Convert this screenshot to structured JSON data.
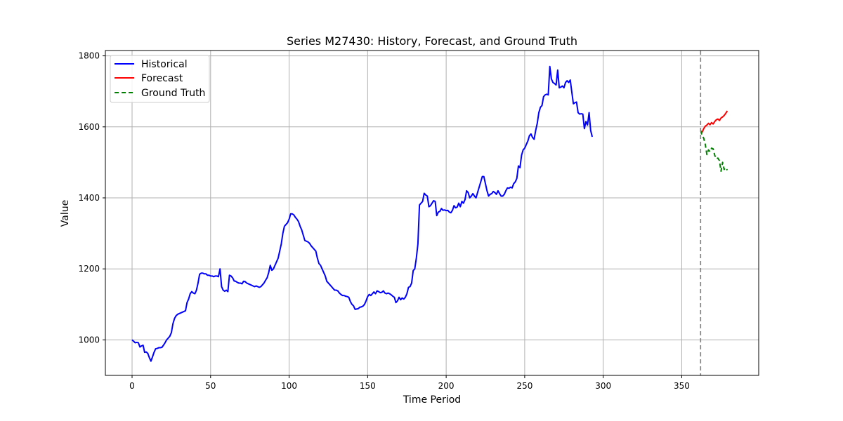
{
  "chart_data": {
    "type": "line",
    "title": "Series M27430: History, Forecast, and Ground Truth",
    "xlabel": "Time Period",
    "ylabel": "Value",
    "xlim": [
      -17,
      399
    ],
    "ylim": [
      900,
      1815
    ],
    "xticks": [
      0,
      50,
      100,
      150,
      200,
      250,
      300,
      350
    ],
    "yticks": [
      1000,
      1200,
      1400,
      1600,
      1800
    ],
    "grid": true,
    "legend_position": "upper left",
    "forecast_start_marker": 362,
    "series": [
      {
        "name": "Historical",
        "color": "#0000ff",
        "style": "solid",
        "x_start": 0,
        "values": [
          1000,
          996,
          992,
          993,
          992,
          980,
          983,
          985,
          965,
          966,
          962,
          950,
          940,
          952,
          965,
          975,
          976,
          978,
          978,
          979,
          985,
          992,
          1000,
          1005,
          1010,
          1020,
          1045,
          1060,
          1068,
          1072,
          1074,
          1076,
          1078,
          1080,
          1082,
          1105,
          1115,
          1130,
          1136,
          1132,
          1130,
          1140,
          1160,
          1185,
          1188,
          1188,
          1186,
          1186,
          1182,
          1182,
          1180,
          1180,
          1178,
          1180,
          1180,
          1178,
          1200,
          1150,
          1140,
          1137,
          1140,
          1136,
          1182,
          1180,
          1175,
          1166,
          1165,
          1162,
          1160,
          1160,
          1158,
          1165,
          1164,
          1160,
          1158,
          1156,
          1154,
          1152,
          1150,
          1152,
          1150,
          1148,
          1150,
          1155,
          1160,
          1168,
          1175,
          1190,
          1210,
          1196,
          1200,
          1210,
          1220,
          1230,
          1250,
          1270,
          1300,
          1320,
          1325,
          1330,
          1340,
          1355,
          1355,
          1352,
          1345,
          1340,
          1333,
          1320,
          1310,
          1295,
          1280,
          1278,
          1276,
          1272,
          1265,
          1260,
          1255,
          1250,
          1230,
          1215,
          1210,
          1200,
          1190,
          1180,
          1165,
          1160,
          1155,
          1150,
          1145,
          1140,
          1140,
          1138,
          1132,
          1128,
          1125,
          1125,
          1123,
          1122,
          1120,
          1108,
          1100,
          1096,
          1086,
          1087,
          1088,
          1092,
          1093,
          1095,
          1100,
          1110,
          1122,
          1128,
          1125,
          1130,
          1135,
          1130,
          1138,
          1136,
          1133,
          1134,
          1138,
          1132,
          1130,
          1132,
          1130,
          1127,
          1123,
          1120,
          1105,
          1110,
          1120,
          1113,
          1118,
          1115,
          1120,
          1130,
          1148,
          1150,
          1160,
          1195,
          1200,
          1230,
          1270,
          1380,
          1385,
          1390,
          1413,
          1408,
          1405,
          1375,
          1378,
          1385,
          1392,
          1390,
          1350,
          1360,
          1362,
          1370,
          1365,
          1366,
          1364,
          1365,
          1360,
          1358,
          1365,
          1378,
          1372,
          1374,
          1385,
          1375,
          1390,
          1385,
          1395,
          1420,
          1415,
          1400,
          1405,
          1412,
          1405,
          1400,
          1415,
          1430,
          1445,
          1460,
          1460,
          1440,
          1420,
          1405,
          1410,
          1412,
          1418,
          1415,
          1410,
          1420,
          1412,
          1405,
          1405,
          1410,
          1420,
          1428,
          1427,
          1430,
          1428,
          1440,
          1445,
          1455,
          1490,
          1485,
          1520,
          1535,
          1540,
          1550,
          1560,
          1575,
          1580,
          1570,
          1565,
          1590,
          1610,
          1640,
          1655,
          1660,
          1685,
          1690,
          1692,
          1690,
          1770,
          1735,
          1725,
          1722,
          1718,
          1760,
          1710,
          1712,
          1715,
          1710,
          1725,
          1730,
          1725,
          1732,
          1698,
          1665,
          1668,
          1670,
          1640,
          1636,
          1637,
          1636,
          1595,
          1615,
          1605,
          1640,
          1590,
          1572
        ]
      },
      {
        "name": "Forecast",
        "color": "#ff0000",
        "style": "solid",
        "x_start": 362,
        "values": [
          1588,
          1585,
          1595,
          1602,
          1605,
          1610,
          1606,
          1612,
          1608,
          1615,
          1620,
          1622,
          1618,
          1625,
          1628,
          1632,
          1638,
          1645
        ]
      },
      {
        "name": "Ground Truth",
        "color": "#008000",
        "style": "dashed",
        "x_start": 362,
        "values": [
          1590,
          1575,
          1568,
          1550,
          1522,
          1535,
          1530,
          1540,
          1538,
          1520,
          1510,
          1512,
          1505,
          1475,
          1500,
          1480,
          1485,
          1478
        ]
      }
    ]
  }
}
